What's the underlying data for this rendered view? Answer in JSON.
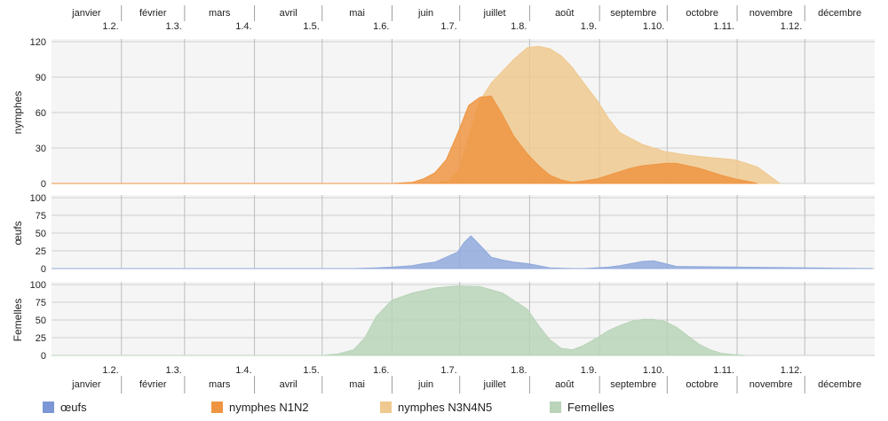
{
  "chart_data": {
    "type": "area",
    "months": [
      "janvier",
      "février",
      "mars",
      "avril",
      "mai",
      "juin",
      "juillet",
      "août",
      "septembre",
      "octobre",
      "novembre",
      "décembre"
    ],
    "date_ticks": [
      "1.2.",
      "1.3.",
      "1.4.",
      "1.5.",
      "1.6.",
      "1.7.",
      "1.8.",
      "1.9.",
      "1.10.",
      "1.11.",
      "1.12."
    ],
    "panels": [
      {
        "id": "nymphes",
        "ylabel": "nymphes",
        "ylim": [
          0,
          120
        ],
        "yticks": [
          0,
          30,
          60,
          90,
          120
        ],
        "series": [
          {
            "name": "nymphes N3N4N5",
            "color": "#efc98f",
            "x": [
              "01-01",
              "05-01",
              "06-01",
              "06-20",
              "06-26",
              "07-01",
              "07-05",
              "07-10",
              "07-15",
              "07-20",
              "07-25",
              "07-31",
              "08-05",
              "08-10",
              "08-15",
              "08-20",
              "08-25",
              "08-31",
              "09-05",
              "09-10",
              "09-20",
              "09-30",
              "10-10",
              "10-20",
              "10-31",
              "11-10",
              "11-15",
              "11-20"
            ],
            "y": [
              0,
              0,
              0,
              0,
              2,
              12,
              40,
              70,
              85,
              95,
              105,
              115,
              116,
              114,
              108,
              98,
              85,
              70,
              55,
              43,
              33,
              27,
              24,
              22,
              20,
              14,
              7,
              0
            ]
          },
          {
            "name": "nymphes N1N2",
            "color": "#ef9542",
            "x": [
              "01-01",
              "06-01",
              "06-10",
              "06-15",
              "06-20",
              "06-25",
              "06-30",
              "07-05",
              "07-10",
              "07-15",
              "07-20",
              "07-25",
              "07-31",
              "08-05",
              "08-10",
              "08-15",
              "08-20",
              "08-25",
              "08-31",
              "09-05",
              "09-10",
              "09-15",
              "09-20",
              "09-25",
              "09-30",
              "10-05",
              "10-10",
              "10-15",
              "10-20",
              "10-25",
              "10-31",
              "11-05",
              "11-10"
            ],
            "y": [
              0,
              0,
              1,
              4,
              9,
              20,
              42,
              66,
              73,
              74,
              58,
              40,
              25,
              15,
              7,
              3,
              1,
              2,
              4,
              7,
              10,
              13,
              15,
              16,
              17,
              17,
              15,
              13,
              10,
              7,
              4,
              2,
              0
            ]
          }
        ]
      },
      {
        "id": "oeufs",
        "ylabel": "œufs",
        "ylim": [
          0,
          100
        ],
        "yticks": [
          0,
          25,
          50,
          75,
          100
        ],
        "series": [
          {
            "name": "œufs",
            "color": "#90a9dc",
            "x": [
              "01-01",
              "05-15",
              "05-25",
              "06-01",
              "06-10",
              "06-15",
              "06-20",
              "06-25",
              "06-30",
              "07-03",
              "07-06",
              "07-10",
              "07-15",
              "07-20",
              "07-25",
              "07-31",
              "08-05",
              "08-10",
              "08-20",
              "08-25",
              "09-05",
              "09-10",
              "09-15",
              "09-20",
              "09-25",
              "09-30",
              "10-05",
              "12-31"
            ],
            "y": [
              0,
              0,
              1,
              2,
              4,
              7,
              9,
              16,
              23,
              37,
              46,
              33,
              16,
              12,
              9,
              7,
              4,
              1,
              0,
              0,
              2,
              4,
              7,
              10,
              11,
              7,
              3,
              0
            ]
          }
        ]
      },
      {
        "id": "femelles",
        "ylabel": "Femelles",
        "ylim": [
          0,
          100
        ],
        "yticks": [
          0,
          25,
          50,
          75,
          100
        ],
        "series": [
          {
            "name": "Femelles",
            "color": "#b9d4b9",
            "x": [
              "01-01",
              "05-01",
              "05-08",
              "05-15",
              "05-20",
              "05-25",
              "06-01",
              "06-10",
              "06-20",
              "06-30",
              "07-10",
              "07-20",
              "07-31",
              "08-05",
              "08-10",
              "08-15",
              "08-20",
              "08-25",
              "08-31",
              "09-05",
              "09-10",
              "09-15",
              "09-20",
              "09-25",
              "09-30",
              "10-05",
              "10-10",
              "10-15",
              "10-20",
              "10-25",
              "10-31",
              "11-05"
            ],
            "y": [
              0,
              0,
              2,
              8,
              25,
              55,
              78,
              88,
              95,
              98,
              97,
              88,
              65,
              42,
              22,
              10,
              8,
              14,
              25,
              35,
              42,
              48,
              51,
              51,
              48,
              40,
              28,
              16,
              8,
              3,
              1,
              0
            ]
          }
        ]
      }
    ],
    "legend": [
      {
        "label": "œufs",
        "color": "#7b97d6"
      },
      {
        "label": "nymphes N1N2",
        "color": "#ef9542"
      },
      {
        "label": "nymphes N3N4N5",
        "color": "#efc98f"
      },
      {
        "label": "Femelles",
        "color": "#b9d4b9"
      }
    ]
  }
}
